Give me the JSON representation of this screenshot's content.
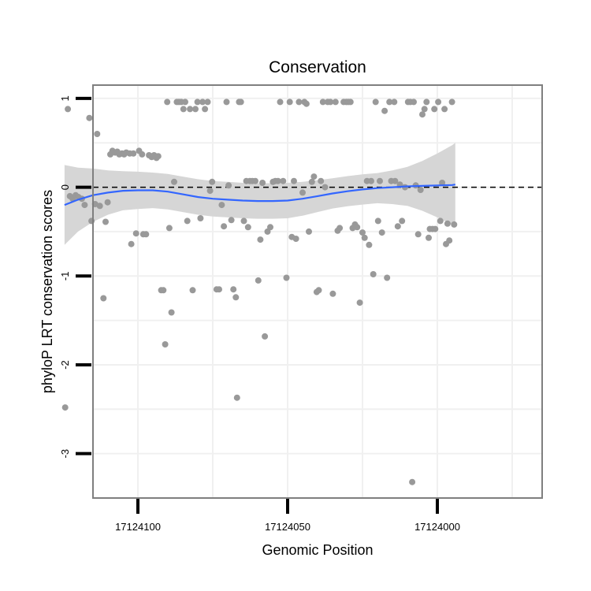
{
  "chart_data": {
    "type": "scatter",
    "title": "Conservation",
    "xlabel": "Genomic Position",
    "ylabel": "phyloP LRT conservation scores",
    "x_reversed": true,
    "xlim": [
      17124115,
      17123965
    ],
    "ylim": [
      -3.5,
      1.15
    ],
    "x_ticks": [
      {
        "value": 17124100,
        "label": "17124100"
      },
      {
        "value": 17124050,
        "label": "17124050"
      },
      {
        "value": 17124000,
        "label": "17124000"
      }
    ],
    "y_ticks": [
      {
        "value": 1,
        "label": "1"
      },
      {
        "value": 0,
        "label": "0"
      },
      {
        "value": -1,
        "label": "-1"
      },
      {
        "value": -2,
        "label": "-2"
      },
      {
        "value": -3,
        "label": "-3"
      }
    ],
    "reference_line": {
      "y": 0,
      "style": "dashed"
    },
    "points": [
      [
        17124124.3,
        -2.48
      ],
      [
        17124123.4,
        0.88
      ],
      [
        17124122.7,
        -0.1
      ],
      [
        17124121.8,
        -0.13
      ],
      [
        17124120.8,
        -0.09
      ],
      [
        17124119.9,
        -0.11
      ],
      [
        17124118.7,
        -0.13
      ],
      [
        17124117.8,
        -0.2
      ],
      [
        17124116.2,
        0.78
      ],
      [
        17124115.5,
        -0.38
      ],
      [
        17124114.3,
        -0.19
      ],
      [
        17124113.6,
        0.6
      ],
      [
        17124112.7,
        -0.21
      ],
      [
        17124111.5,
        -1.25
      ],
      [
        17124110.8,
        -0.39
      ],
      [
        17124110.1,
        -0.17
      ],
      [
        17124109.2,
        0.37
      ],
      [
        17124108.5,
        0.41
      ],
      [
        17124107.6,
        0.39
      ],
      [
        17124106.9,
        0.4
      ],
      [
        17124106.2,
        0.37
      ],
      [
        17124105.3,
        0.38
      ],
      [
        17124104.6,
        0.37
      ],
      [
        17124103.9,
        0.39
      ],
      [
        17124102.7,
        0.38
      ],
      [
        17124102.2,
        -0.64
      ],
      [
        17124101.5,
        0.38
      ],
      [
        17124100.6,
        -0.52
      ],
      [
        17124099.6,
        0.41
      ],
      [
        17124098.6,
        0.37
      ],
      [
        17124098.2,
        -0.53
      ],
      [
        17124097.3,
        -0.53
      ],
      [
        17124096.3,
        0.36
      ],
      [
        17124095.4,
        0.34
      ],
      [
        17124094.6,
        0.36
      ],
      [
        17124093.8,
        0.33
      ],
      [
        17124093.2,
        0.35
      ],
      [
        17124092.2,
        -1.16
      ],
      [
        17124091.5,
        -1.16
      ],
      [
        17124090.9,
        -1.77
      ],
      [
        17124090.2,
        0.96
      ],
      [
        17124089.5,
        -0.46
      ],
      [
        17124088.8,
        -1.41
      ],
      [
        17124087.9,
        0.06
      ],
      [
        17124087.0,
        0.96
      ],
      [
        17124086.3,
        0.96
      ],
      [
        17124085.5,
        0.96
      ],
      [
        17124084.8,
        0.88
      ],
      [
        17124084.2,
        0.96
      ],
      [
        17124083.5,
        -0.38
      ],
      [
        17124082.6,
        0.88
      ],
      [
        17124081.7,
        -1.16
      ],
      [
        17124080.8,
        0.88
      ],
      [
        17124080.1,
        0.96
      ],
      [
        17124079.1,
        -0.35
      ],
      [
        17124078.4,
        0.96
      ],
      [
        17124077.6,
        0.88
      ],
      [
        17124076.7,
        0.96
      ],
      [
        17124075.9,
        -0.04
      ],
      [
        17124075.2,
        0.06
      ],
      [
        17124073.7,
        -1.15
      ],
      [
        17124072.9,
        -1.15
      ],
      [
        17124072.0,
        -0.2
      ],
      [
        17124071.3,
        -0.44
      ],
      [
        17124070.4,
        0.96
      ],
      [
        17124069.7,
        0.02
      ],
      [
        17124068.8,
        -0.37
      ],
      [
        17124068.1,
        -1.15
      ],
      [
        17124067.3,
        -1.24
      ],
      [
        17124066.9,
        -2.37
      ],
      [
        17124066.2,
        0.96
      ],
      [
        17124065.6,
        0.96
      ],
      [
        17124064.6,
        -0.38
      ],
      [
        17124063.8,
        0.07
      ],
      [
        17124063.2,
        -0.45
      ],
      [
        17124062.6,
        0.07
      ],
      [
        17124061.8,
        0.07
      ],
      [
        17124060.8,
        0.07
      ],
      [
        17124059.8,
        -1.05
      ],
      [
        17124059.1,
        -0.59
      ],
      [
        17124058.4,
        0.05
      ],
      [
        17124057.6,
        -1.68
      ],
      [
        17124056.7,
        -0.5
      ],
      [
        17124055.8,
        -0.45
      ],
      [
        17124054.9,
        0.06
      ],
      [
        17124054.1,
        0.07
      ],
      [
        17124053.2,
        0.07
      ],
      [
        17124052.5,
        0.96
      ],
      [
        17124051.5,
        0.07
      ],
      [
        17124050.4,
        -1.02
      ],
      [
        17124049.3,
        0.96
      ],
      [
        17124048.6,
        -0.56
      ],
      [
        17124047.9,
        0.07
      ],
      [
        17124047.2,
        -0.58
      ],
      [
        17124046.2,
        0.96
      ],
      [
        17124045.0,
        -0.06
      ],
      [
        17124044.4,
        0.96
      ],
      [
        17124043.7,
        0.94
      ],
      [
        17124042.9,
        -0.5
      ],
      [
        17124041.9,
        0.06
      ],
      [
        17124041.2,
        0.12
      ],
      [
        17124040.3,
        -1.18
      ],
      [
        17124039.6,
        -1.16
      ],
      [
        17124038.9,
        0.07
      ],
      [
        17124038.2,
        0.96
      ],
      [
        17124037.5,
        0.0
      ],
      [
        17124036.6,
        0.96
      ],
      [
        17124035.7,
        0.96
      ],
      [
        17124034.9,
        -1.2
      ],
      [
        17124034.0,
        0.96
      ],
      [
        17124033.3,
        -0.49
      ],
      [
        17124032.6,
        -0.46
      ],
      [
        17124031.3,
        0.96
      ],
      [
        17124030.4,
        0.96
      ],
      [
        17124029.7,
        0.96
      ],
      [
        17124029.0,
        0.96
      ],
      [
        17124028.3,
        -0.46
      ],
      [
        17124027.5,
        -0.42
      ],
      [
        17124026.8,
        -0.45
      ],
      [
        17124025.9,
        -1.3
      ],
      [
        17124025.0,
        -0.51
      ],
      [
        17124024.3,
        -0.57
      ],
      [
        17124023.5,
        0.07
      ],
      [
        17124022.8,
        -0.65
      ],
      [
        17124022.1,
        0.07
      ],
      [
        17124021.4,
        -0.98
      ],
      [
        17124020.6,
        0.96
      ],
      [
        17124019.8,
        -0.38
      ],
      [
        17124019.2,
        0.07
      ],
      [
        17124018.5,
        -0.51
      ],
      [
        17124017.6,
        0.86
      ],
      [
        17124016.8,
        -1.02
      ],
      [
        17124016.0,
        0.96
      ],
      [
        17124015.4,
        0.07
      ],
      [
        17124014.4,
        0.96
      ],
      [
        17124014.1,
        0.07
      ],
      [
        17124013.2,
        -0.44
      ],
      [
        17124012.5,
        0.03
      ],
      [
        17124011.8,
        -0.38
      ],
      [
        17124010.8,
        0.0
      ],
      [
        17124009.8,
        0.96
      ],
      [
        17124009.0,
        0.96
      ],
      [
        17124008.4,
        -3.32
      ],
      [
        17124007.9,
        0.96
      ],
      [
        17124007.2,
        0.02
      ],
      [
        17124006.4,
        -0.53
      ],
      [
        17124005.6,
        -0.03
      ],
      [
        17124005.0,
        0.82
      ],
      [
        17124004.3,
        0.88
      ],
      [
        17124003.6,
        0.96
      ],
      [
        17124002.9,
        -0.57
      ],
      [
        17124002.5,
        -0.47
      ],
      [
        17124001.6,
        -0.47
      ],
      [
        17124001.0,
        0.88
      ],
      [
        17124000.7,
        -0.47
      ],
      [
        17123999.7,
        0.96
      ],
      [
        17123999.0,
        -0.38
      ],
      [
        17123998.4,
        0.05
      ],
      [
        17123997.6,
        0.88
      ],
      [
        17123997.1,
        -0.64
      ],
      [
        17123996.6,
        -0.41
      ],
      [
        17123996.0,
        -0.6
      ],
      [
        17123995.1,
        0.96
      ],
      [
        17123994.4,
        -0.42
      ]
    ],
    "trend": [
      [
        17124124.5,
        -0.2
      ],
      [
        17124120,
        -0.14
      ],
      [
        17124115,
        -0.09
      ],
      [
        17124110,
        -0.06
      ],
      [
        17124105,
        -0.04
      ],
      [
        17124100,
        -0.035
      ],
      [
        17124095,
        -0.035
      ],
      [
        17124090,
        -0.05
      ],
      [
        17124085,
        -0.08
      ],
      [
        17124080,
        -0.11
      ],
      [
        17124075,
        -0.13
      ],
      [
        17124070,
        -0.14
      ],
      [
        17124065,
        -0.15
      ],
      [
        17124060,
        -0.155
      ],
      [
        17124055,
        -0.155
      ],
      [
        17124050,
        -0.15
      ],
      [
        17124045,
        -0.13
      ],
      [
        17124040,
        -0.1
      ],
      [
        17124035,
        -0.07
      ],
      [
        17124030,
        -0.045
      ],
      [
        17124025,
        -0.025
      ],
      [
        17124020,
        -0.01
      ],
      [
        17124015,
        0.0
      ],
      [
        17124010,
        0.01
      ],
      [
        17124005,
        0.015
      ],
      [
        17124000,
        0.02
      ],
      [
        17123995,
        0.025
      ],
      [
        17123994,
        0.03
      ]
    ],
    "ribbon_halfwidth": [
      [
        17124124.5,
        0.45
      ],
      [
        17124120,
        0.36
      ],
      [
        17124115,
        0.3
      ],
      [
        17124110,
        0.25
      ],
      [
        17124105,
        0.22
      ],
      [
        17124100,
        0.21
      ],
      [
        17124095,
        0.2
      ],
      [
        17124090,
        0.2
      ],
      [
        17124085,
        0.2
      ],
      [
        17124080,
        0.2
      ],
      [
        17124075,
        0.2
      ],
      [
        17124070,
        0.2
      ],
      [
        17124065,
        0.2
      ],
      [
        17124060,
        0.2
      ],
      [
        17124055,
        0.2
      ],
      [
        17124050,
        0.2
      ],
      [
        17124045,
        0.19
      ],
      [
        17124040,
        0.18
      ],
      [
        17124035,
        0.17
      ],
      [
        17124030,
        0.17
      ],
      [
        17124025,
        0.17
      ],
      [
        17124020,
        0.17
      ],
      [
        17124015,
        0.19
      ],
      [
        17124010,
        0.22
      ],
      [
        17124005,
        0.28
      ],
      [
        17124000,
        0.36
      ],
      [
        17123995,
        0.45
      ],
      [
        17123994,
        0.47
      ]
    ]
  }
}
